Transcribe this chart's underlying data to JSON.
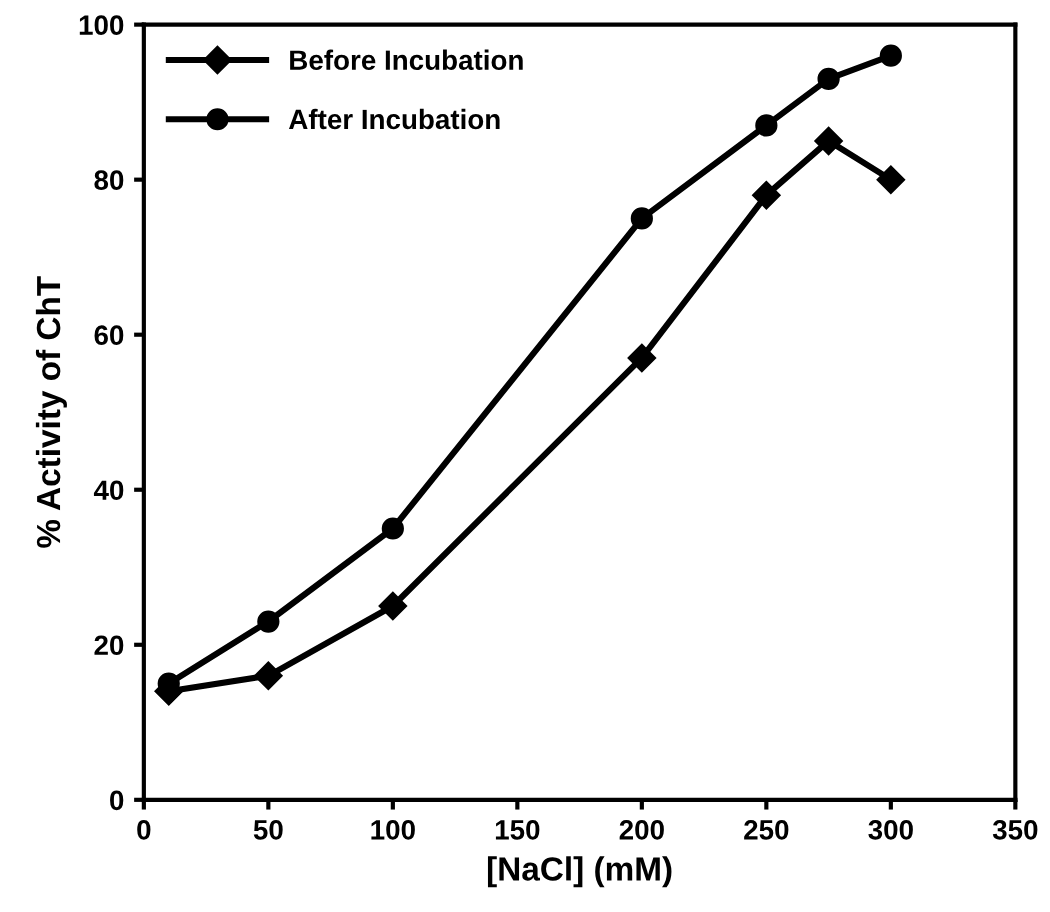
{
  "chart_data": {
    "type": "line",
    "xlabel": "[NaCl] (mM)",
    "ylabel": "% Activity of ChT",
    "xlim": [
      0,
      350
    ],
    "xticks": [
      0,
      50,
      100,
      150,
      200,
      250,
      300,
      350
    ],
    "ylim": [
      0,
      100
    ],
    "yticks": [
      0,
      20,
      40,
      60,
      80,
      100
    ],
    "grid": false,
    "legend": "top left",
    "line_style": "solid",
    "series": [
      {
        "name": "Before Incubation",
        "color": "#000000",
        "marker": "diamond",
        "x": [
          10,
          50,
          100,
          200,
          250,
          275,
          300
        ],
        "values": [
          14,
          16,
          25,
          57,
          78,
          85,
          80
        ]
      },
      {
        "name": "After Incubation",
        "color": "#000000",
        "marker": "circle",
        "x": [
          10,
          50,
          100,
          200,
          250,
          275,
          300
        ],
        "values": [
          15,
          23,
          35,
          75,
          87,
          93,
          96
        ]
      }
    ]
  }
}
